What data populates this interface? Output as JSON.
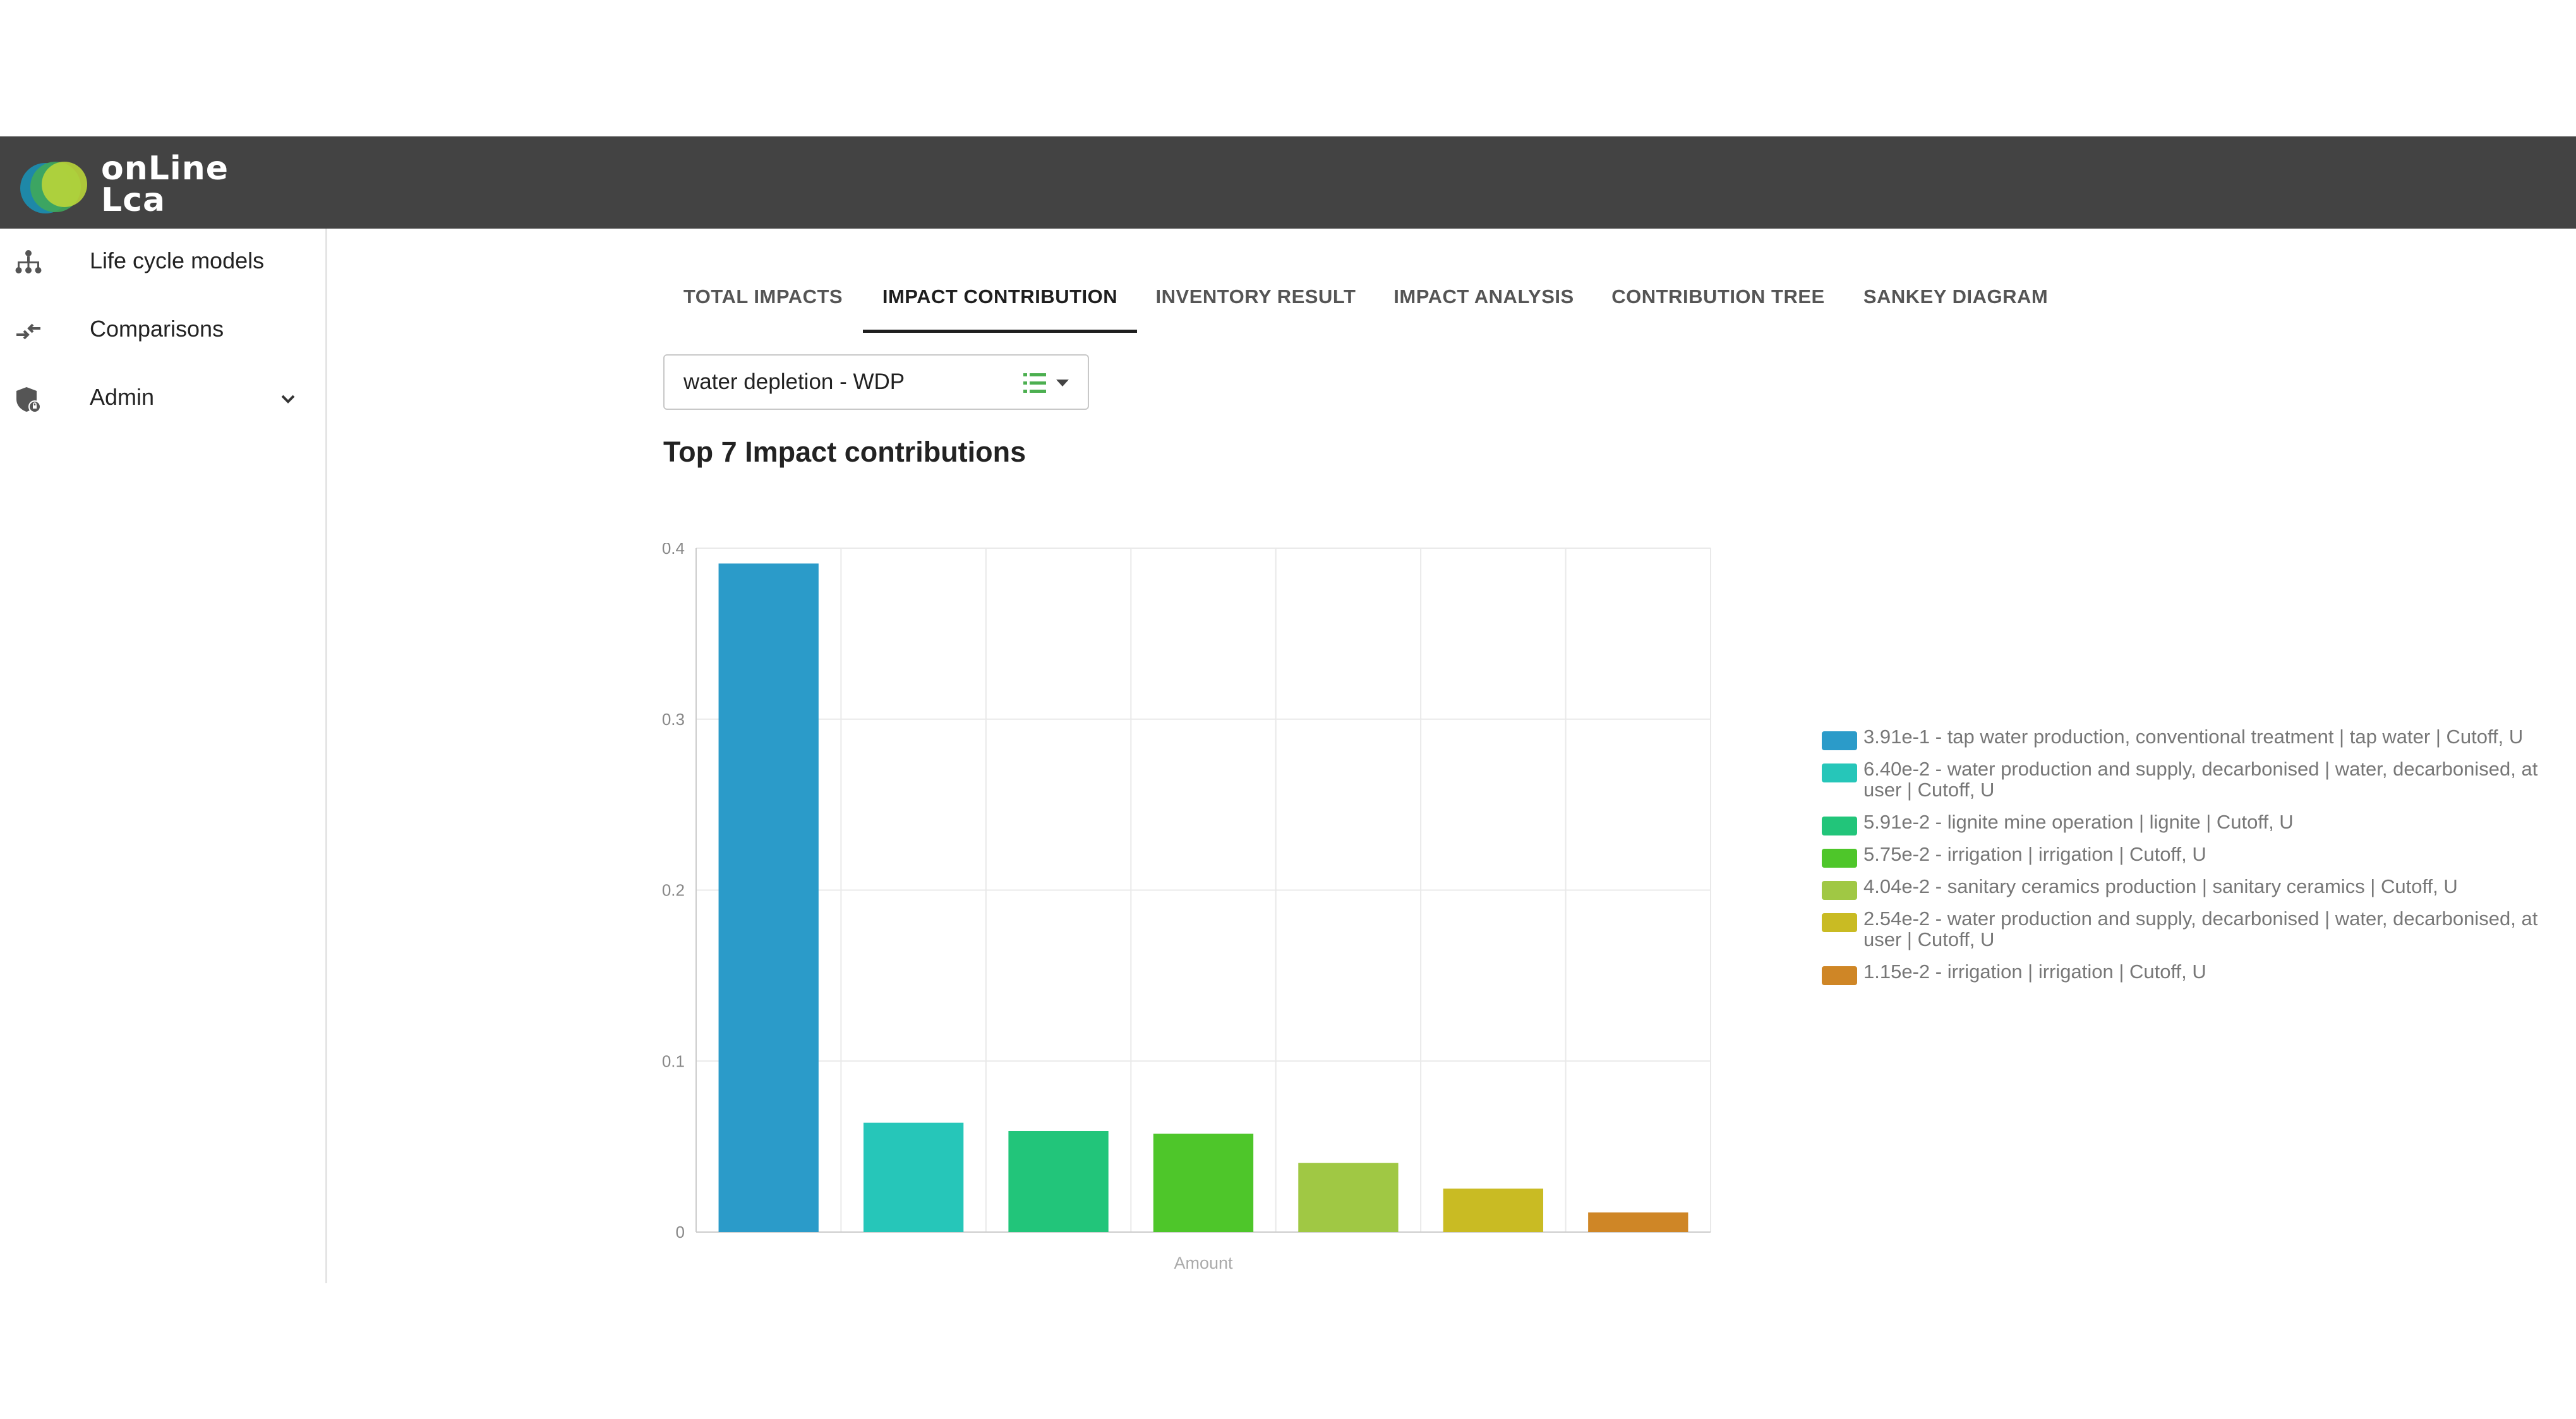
{
  "app": {
    "logo_line1": "onLine",
    "logo_line2": "Lca"
  },
  "sidebar": {
    "items": [
      {
        "label": "Life cycle models",
        "icon": "sitemap-icon"
      },
      {
        "label": "Comparisons",
        "icon": "compare-arrows-icon"
      },
      {
        "label": "Admin",
        "icon": "shield-lock-icon",
        "expandable": true
      }
    ]
  },
  "tabs": [
    {
      "label": "TOTAL IMPACTS",
      "active": false
    },
    {
      "label": "IMPACT CONTRIBUTION",
      "active": true
    },
    {
      "label": "INVENTORY RESULT",
      "active": false
    },
    {
      "label": "IMPACT ANALYSIS",
      "active": false
    },
    {
      "label": "CONTRIBUTION TREE",
      "active": false
    },
    {
      "label": "SANKEY DIAGRAM",
      "active": false
    }
  ],
  "selector": {
    "value": "water depletion - WDP",
    "icon": "list-dropdown-icon",
    "icon_color": "#4caf50"
  },
  "chart_title": "Top 7 Impact contributions",
  "chart_data": {
    "type": "bar",
    "categories": [
      "",
      "",
      "",
      "",
      "",
      "",
      ""
    ],
    "values": [
      0.391,
      0.064,
      0.0591,
      0.0575,
      0.0404,
      0.0254,
      0.0115
    ],
    "colors": [
      "#2b9bc9",
      "#26c6b9",
      "#22c57a",
      "#4ec62a",
      "#a0c844",
      "#c9bb23",
      "#cf8626"
    ],
    "xlabel": "Amount",
    "ylabel": "",
    "ylim": [
      0,
      0.4
    ],
    "yticks": [
      "0",
      "0.1",
      "0.2",
      "0.3",
      "0.4"
    ],
    "grid": true,
    "legend_position": "right",
    "legend": [
      "3.91e-1 - tap water production, conventional treatment | tap water | Cutoff, U",
      "6.40e-2 - water production and supply, decarbonised | water, decarbonised, at user | Cutoff, U",
      "5.91e-2 - lignite mine operation | lignite | Cutoff, U",
      "5.75e-2 - irrigation | irrigation | Cutoff, U",
      "4.04e-2 - sanitary ceramics production | sanitary ceramics | Cutoff, U",
      "2.54e-2 - water production and supply, decarbonised | water, decarbonised, at user | Cutoff, U",
      "1.15e-2 - irrigation | irrigation | Cutoff, U"
    ]
  }
}
